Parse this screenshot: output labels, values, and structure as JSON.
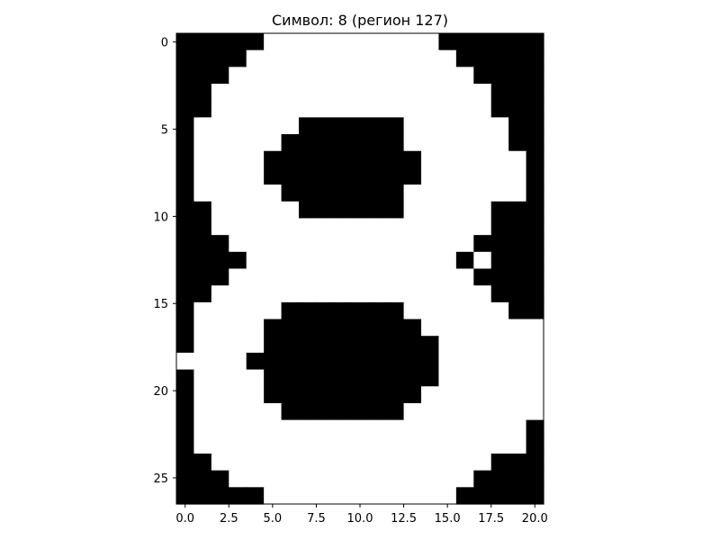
{
  "chart_data": {
    "type": "heatmap",
    "title": "Символ: 8 (регион 127)",
    "xlabel": "",
    "ylabel": "",
    "colormap": {
      "0": "#000000",
      "1": "#ffffff"
    },
    "grid": false,
    "xlim": [
      -0.5,
      20.5
    ],
    "ylim": [
      26.5,
      -0.5
    ],
    "x_ticks": [
      0.0,
      2.5,
      5.0,
      7.5,
      10.0,
      12.5,
      15.0,
      17.5,
      20.0
    ],
    "x_tick_labels": [
      "0.0",
      "2.5",
      "5.0",
      "7.5",
      "10.0",
      "12.5",
      "15.0",
      "17.5",
      "20.0"
    ],
    "y_ticks": [
      0,
      5,
      10,
      15,
      20,
      25
    ],
    "y_tick_labels": [
      "0",
      "5",
      "10",
      "15",
      "20",
      "25"
    ],
    "rows": [
      "000001111111111000000",
      "000011111111111100000",
      "000111111111111110000",
      "001111111111111111000",
      "001111111111111111000",
      "011111100000011111100",
      "011111000000011111100",
      "011110000000001111110",
      "011110000000001111110",
      "011111000000011111110",
      "001111100000011111000",
      "001111111111111111000",
      "000111111111111110000",
      "000011111111111101000",
      "000111111111111110000",
      "001111111111111111000",
      "011111000000011111100",
      "011110000000001111111",
      "011110000000000111111",
      "111100000000000111111",
      "011110000000000111111",
      "011110000000001111111",
      "011111000000011111111",
      "011111111111111111110",
      "011111111111111111110",
      "001111111111111111000",
      "000111111111111110000",
      "000001111111111100000"
    ]
  }
}
